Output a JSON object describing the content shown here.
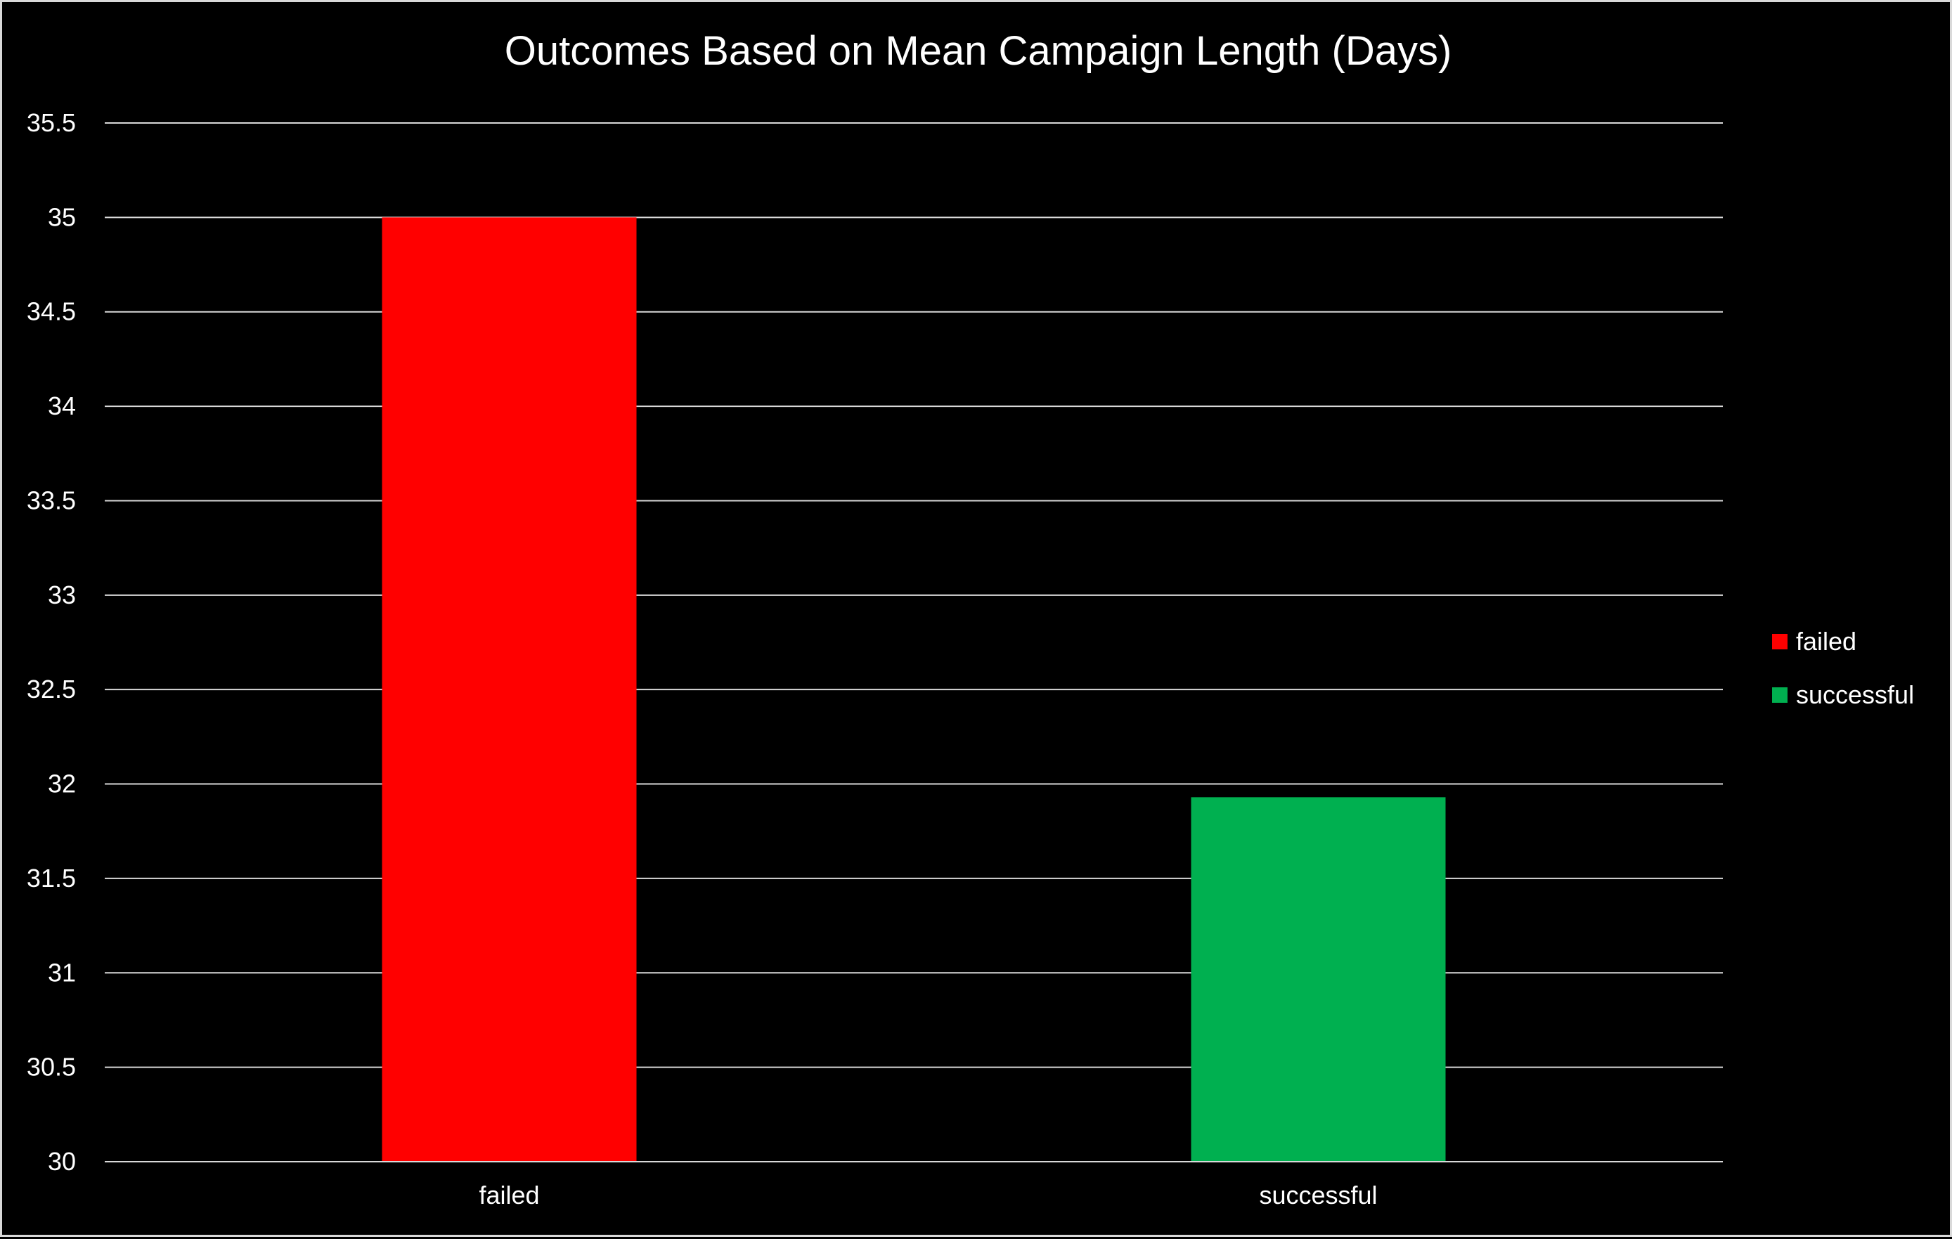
{
  "chart_data": {
    "type": "bar",
    "title": "Outcomes Based on Mean Campaign Length (Days)",
    "categories": [
      "failed",
      "successful"
    ],
    "values": [
      35.0,
      31.93
    ],
    "colors": [
      "#ff0000",
      "#00b050"
    ],
    "ylim": [
      30,
      35.5
    ],
    "yticks": [
      "30",
      "30.5",
      "31",
      "31.5",
      "32",
      "32.5",
      "33",
      "33.5",
      "34",
      "34.5",
      "35",
      "35.5"
    ],
    "grid": true,
    "legend": {
      "placement": "right",
      "entries": [
        {
          "label": "failed",
          "color": "#ff0000"
        },
        {
          "label": "successful",
          "color": "#00b050"
        }
      ]
    },
    "background": "#000000",
    "gridline_color": "#d9d9d9",
    "text_color": "#ffffff"
  }
}
